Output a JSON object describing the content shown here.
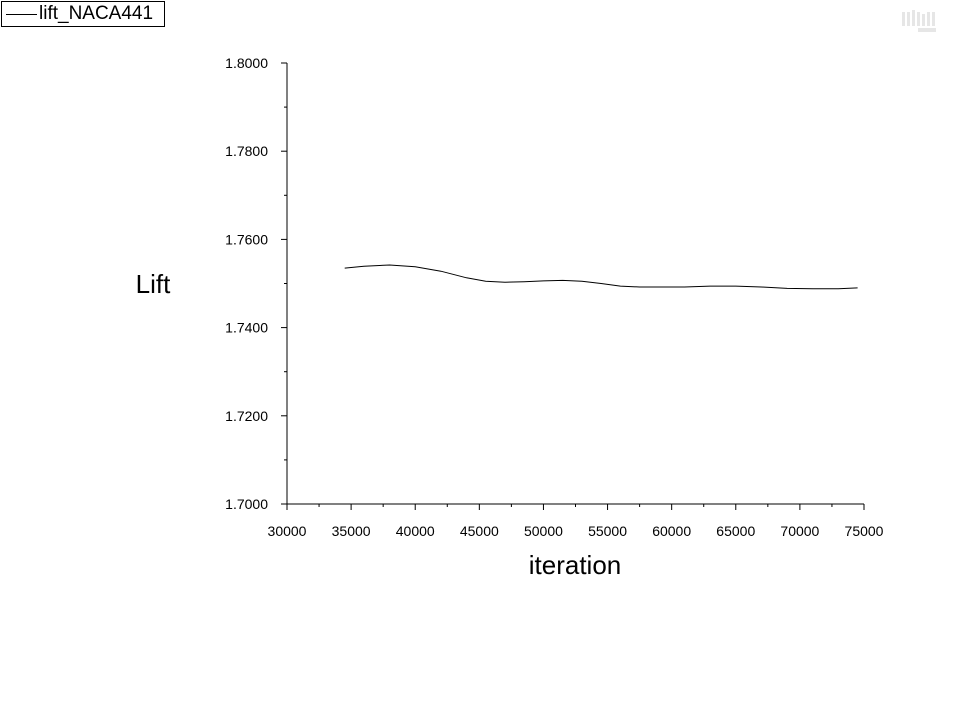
{
  "chart_data": {
    "type": "line",
    "title": "",
    "xlabel": "iteration",
    "ylabel": "Lift",
    "xlim": [
      30000,
      75000
    ],
    "ylim": [
      1.7,
      1.8
    ],
    "x_ticks": [
      "30000",
      "35000",
      "40000",
      "45000",
      "50000",
      "55000",
      "60000",
      "65000",
      "70000",
      "75000"
    ],
    "y_ticks": [
      "1.7000",
      "1.7200",
      "1.7400",
      "1.7600",
      "1.7800",
      "1.8000"
    ],
    "grid": false,
    "legend_position": "top-left",
    "series": [
      {
        "name": "lift_NACA441",
        "color": "#000000",
        "x": [
          34500,
          36000,
          38000,
          40000,
          42000,
          44000,
          45500,
          47000,
          48500,
          50000,
          51500,
          53000,
          54500,
          56000,
          57500,
          59000,
          61000,
          63000,
          65000,
          67000,
          69000,
          71000,
          73000,
          74500
        ],
        "y": [
          1.7535,
          1.7539,
          1.7542,
          1.7538,
          1.7528,
          1.7513,
          1.7505,
          1.7503,
          1.7504,
          1.7506,
          1.7507,
          1.7505,
          1.75,
          1.7494,
          1.7492,
          1.7492,
          1.7492,
          1.7494,
          1.7494,
          1.7492,
          1.7489,
          1.7488,
          1.7488,
          1.749
        ]
      }
    ]
  },
  "watermark_icon": "logo-watermark-icon"
}
